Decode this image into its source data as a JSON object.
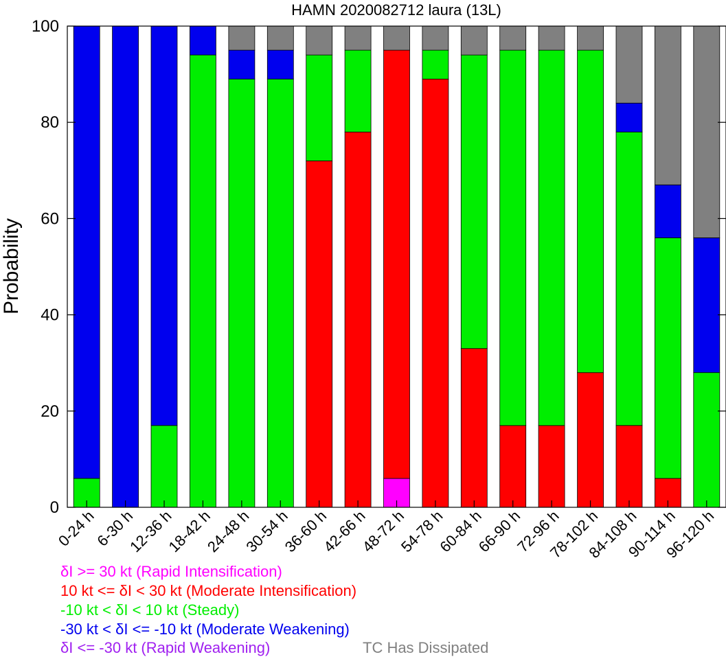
{
  "chart_data": {
    "type": "bar",
    "stacked": true,
    "title": "HAMN 2020082712 laura (13L)",
    "xlabel": "",
    "ylabel": "Probability",
    "ylim": [
      0,
      100
    ],
    "yticks": [
      0,
      20,
      40,
      60,
      80,
      100
    ],
    "categories": [
      "0-24 h",
      "6-30 h",
      "12-36 h",
      "18-42 h",
      "24-48 h",
      "30-54 h",
      "36-60 h",
      "42-66 h",
      "48-72 h",
      "54-78 h",
      "60-84 h",
      "66-90 h",
      "72-96 h",
      "78-102 h",
      "84-108 h",
      "90-114 h",
      "96-120 h"
    ],
    "series": [
      {
        "key": "ri",
        "color": "#ff00ff",
        "values": [
          0,
          0,
          0,
          0,
          0,
          0,
          0,
          0,
          6,
          0,
          0,
          0,
          0,
          0,
          0,
          0,
          0
        ]
      },
      {
        "key": "mi",
        "color": "#ff0000",
        "values": [
          0,
          0,
          0,
          0,
          0,
          0,
          72,
          78,
          89,
          89,
          33,
          17,
          17,
          28,
          17,
          6,
          0
        ]
      },
      {
        "key": "st",
        "color": "#00ee00",
        "values": [
          6,
          0,
          17,
          94,
          89,
          89,
          22,
          17,
          0,
          6,
          61,
          78,
          78,
          67,
          61,
          50,
          28
        ]
      },
      {
        "key": "mw",
        "color": "#0000ee",
        "values": [
          94,
          100,
          83,
          6,
          6,
          6,
          0,
          0,
          0,
          0,
          0,
          0,
          0,
          0,
          6,
          11,
          28
        ]
      },
      {
        "key": "rw",
        "color": "#a020f0",
        "values": [
          0,
          0,
          0,
          0,
          0,
          0,
          0,
          0,
          0,
          0,
          0,
          0,
          0,
          0,
          0,
          0,
          0
        ]
      },
      {
        "key": "diss",
        "color": "#808080",
        "values": [
          0,
          0,
          0,
          0,
          5,
          5,
          6,
          5,
          5,
          5,
          6,
          5,
          5,
          5,
          16,
          33,
          44
        ]
      }
    ],
    "legend_position": "bottom-left",
    "legend": [
      {
        "text": "δI >= 30 kt (Rapid Intensification)",
        "color": "#ff00ff"
      },
      {
        "text": "10 kt <= δI < 30 kt (Moderate Intensification)",
        "color": "#ff0000"
      },
      {
        "text": "-10 kt < δI < 10 kt (Steady)",
        "color": "#00ee00"
      },
      {
        "text": "-30 kt < δI <= -10 kt (Moderate Weakening)",
        "color": "#0000ee"
      },
      {
        "text": "δI <= -30 kt (Rapid Weakening)",
        "color": "#a020f0"
      },
      {
        "text": "TC Has Dissipated",
        "color": "#808080"
      }
    ]
  }
}
